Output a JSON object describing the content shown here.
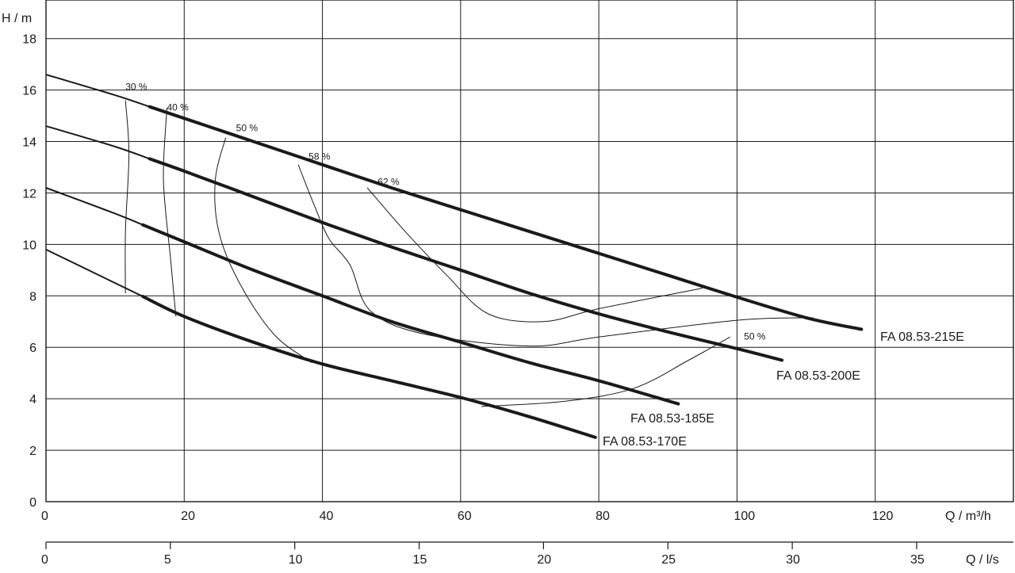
{
  "chart_data": {
    "type": "line",
    "title": "",
    "ylabel": "H / m",
    "xlabel": "Q / m³/h",
    "x2label": "Q / l/s",
    "xlim": [
      0,
      140
    ],
    "ylim": [
      0,
      19.5
    ],
    "x2lim": [
      0,
      38.89
    ],
    "grid": true,
    "x_ticks": [
      0,
      20,
      40,
      60,
      80,
      100,
      120
    ],
    "y_ticks": [
      0,
      2,
      4,
      6,
      8,
      10,
      12,
      14,
      16,
      18
    ],
    "x2_ticks": [
      0,
      5,
      10,
      15,
      20,
      25,
      30,
      35
    ],
    "series": [
      {
        "name": "FA 08.53-215E",
        "x": [
          0,
          10,
          20,
          30,
          40,
          50,
          60,
          70,
          80,
          90,
          100,
          110,
          118
        ],
        "y": [
          16.6,
          15.8,
          14.9,
          14.0,
          13.1,
          12.2,
          11.35,
          10.5,
          9.65,
          8.8,
          7.95,
          7.15,
          6.7
        ],
        "thin_until_x": 15
      },
      {
        "name": "FA 08.53-200E",
        "x": [
          0,
          10,
          20,
          30,
          40,
          50,
          60,
          70,
          80,
          90,
          100,
          106.5
        ],
        "y": [
          14.6,
          13.8,
          12.85,
          11.85,
          10.85,
          9.9,
          9.0,
          8.1,
          7.3,
          6.6,
          5.95,
          5.5
        ],
        "thin_until_x": 15
      },
      {
        "name": "FA 08.53-185E",
        "x": [
          0,
          10,
          20,
          30,
          40,
          50,
          60,
          70,
          80,
          91.5
        ],
        "y": [
          12.2,
          11.2,
          10.1,
          9.0,
          8.0,
          7.0,
          6.2,
          5.4,
          4.7,
          3.8
        ],
        "thin_until_x": 14
      },
      {
        "name": "FA 08.53-170E",
        "x": [
          0,
          10,
          20,
          30,
          40,
          50,
          60,
          70,
          79.5
        ],
        "y": [
          9.8,
          8.5,
          7.2,
          6.2,
          5.35,
          4.7,
          4.05,
          3.3,
          2.5
        ],
        "thin_until_x": 14
      }
    ],
    "efficiency_contours": [
      {
        "label": "30 %",
        "label_at": [
          11.5,
          16.0
        ],
        "points": [
          [
            11.5,
            15.6
          ],
          [
            12.0,
            13.5
          ],
          [
            11.5,
            10.5
          ],
          [
            11.5,
            8.1
          ]
        ]
      },
      {
        "label": "40 %",
        "label_at": [
          17.5,
          15.2
        ],
        "points": [
          [
            17.5,
            15.3
          ],
          [
            17.0,
            12.5
          ],
          [
            18.0,
            9.5
          ],
          [
            18.8,
            7.2
          ]
        ]
      },
      {
        "label": "50 %",
        "label_at": [
          27.5,
          14.4
        ],
        "points": [
          [
            26.0,
            14.15
          ],
          [
            24.5,
            12.5
          ],
          [
            25.0,
            10.5
          ],
          [
            28.0,
            8.5
          ],
          [
            33.0,
            6.5
          ],
          [
            38.5,
            5.4
          ]
        ]
      },
      {
        "label": "58 %",
        "label_at": [
          38.0,
          13.3
        ],
        "points": [
          [
            36.5,
            13.1
          ],
          [
            39.0,
            11.4
          ],
          [
            41.0,
            10.2
          ],
          [
            44.0,
            9.2
          ],
          [
            47.0,
            7.4
          ],
          [
            55.0,
            6.5
          ],
          [
            70.0,
            6.05
          ],
          [
            80.0,
            6.4
          ],
          [
            100.0,
            7.05
          ],
          [
            111.0,
            7.15
          ]
        ]
      },
      {
        "label": "62 %",
        "label_at": [
          48.0,
          12.3
        ],
        "points": [
          [
            46.5,
            12.2
          ],
          [
            52.0,
            10.5
          ],
          [
            58.0,
            8.8
          ],
          [
            64.0,
            7.3
          ],
          [
            72.0,
            7.0
          ],
          [
            80.0,
            7.5
          ],
          [
            95.0,
            8.3
          ]
        ]
      },
      {
        "label": "50 %",
        "label_at": [
          101.0,
          6.3
        ],
        "points": [
          [
            63.0,
            3.7
          ],
          [
            75.0,
            3.9
          ],
          [
            85.0,
            4.4
          ],
          [
            93.0,
            5.5
          ],
          [
            99.0,
            6.4
          ]
        ]
      }
    ]
  }
}
